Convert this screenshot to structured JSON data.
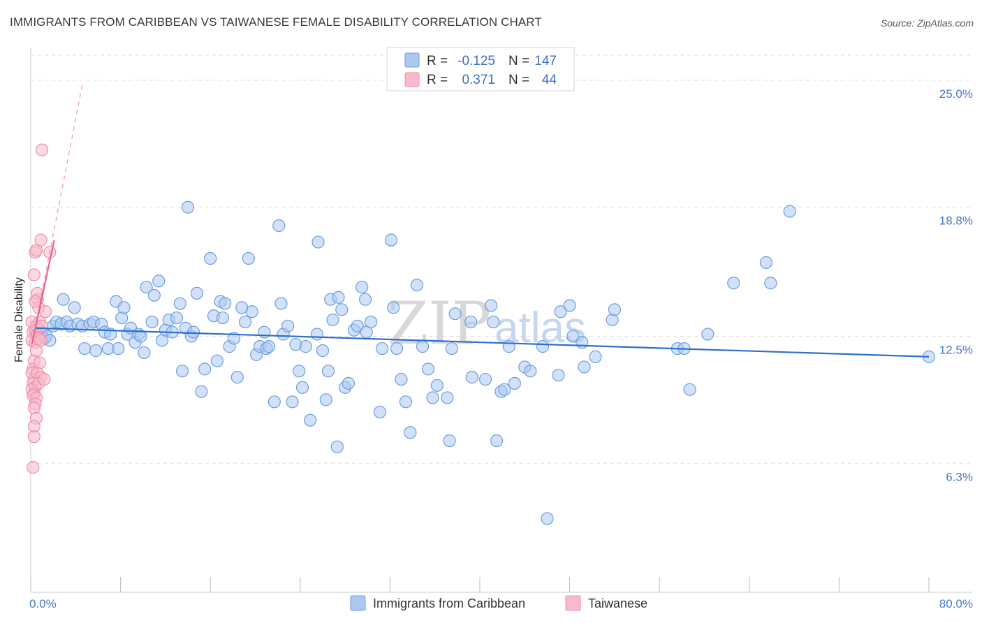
{
  "title": "IMMIGRANTS FROM CARIBBEAN VS TAIWANESE FEMALE DISABILITY CORRELATION CHART",
  "source": "Source: ZipAtlas.com",
  "watermark": {
    "zip": "ZIP",
    "atlas": "atlas"
  },
  "colors": {
    "blue_fill": "#a9c8f2",
    "blue_stroke": "#6f9de0",
    "blue_line": "#2b6fd1",
    "pink_fill": "#f7b9cb",
    "pink_stroke": "#ec8fac",
    "pink_line": "#e8638e",
    "grid": "#dddddd",
    "axis_text": "#4a78c8"
  },
  "legend": {
    "rows": [
      {
        "r_label": "R =",
        "r_value": "-0.125",
        "n_label": "N =",
        "n_value": "147"
      },
      {
        "r_label": "R =",
        "r_value": "0.371",
        "n_label": "N =",
        "n_value": "44"
      }
    ]
  },
  "bottom_legend": [
    "Immigrants from Caribbean",
    "Taiwanese"
  ],
  "chart_data": {
    "type": "scatter",
    "title": "IMMIGRANTS FROM CARIBBEAN VS TAIWANESE FEMALE DISABILITY CORRELATION CHART",
    "xlabel": "",
    "ylabel": "Female Disability",
    "xlim": [
      0,
      80
    ],
    "ylim": [
      0,
      26.6
    ],
    "x_tick_labels": [
      {
        "value": 0,
        "label": "0.0%"
      },
      {
        "value": 80,
        "label": "80.0%"
      }
    ],
    "y_tick_labels": [
      {
        "value": 6.3,
        "label": "6.3%"
      },
      {
        "value": 12.5,
        "label": "12.5%"
      },
      {
        "value": 18.8,
        "label": "18.8%"
      },
      {
        "value": 25.0,
        "label": "25.0%"
      }
    ],
    "grid": true,
    "legend_position": "top-center",
    "series": [
      {
        "name": "Immigrants from Caribbean",
        "r": -0.125,
        "n": 147,
        "trend": {
          "x": [
            0.5,
            80
          ],
          "y": [
            12.9,
            11.5
          ]
        },
        "points": [
          [
            0.5,
            12.6
          ],
          [
            0.8,
            12.8
          ],
          [
            1.0,
            12.7
          ],
          [
            1.2,
            12.4
          ],
          [
            1.4,
            12.5
          ],
          [
            1.7,
            12.3
          ],
          [
            2.0,
            13.0
          ],
          [
            2.3,
            13.2
          ],
          [
            2.7,
            13.1
          ],
          [
            2.9,
            14.3
          ],
          [
            3.2,
            13.2
          ],
          [
            3.5,
            13.0
          ],
          [
            3.9,
            13.9
          ],
          [
            4.2,
            13.1
          ],
          [
            4.6,
            13.0
          ],
          [
            4.8,
            11.9
          ],
          [
            5.3,
            13.1
          ],
          [
            5.6,
            13.2
          ],
          [
            5.8,
            11.8
          ],
          [
            6.3,
            13.1
          ],
          [
            6.6,
            12.7
          ],
          [
            6.9,
            11.9
          ],
          [
            7.1,
            12.6
          ],
          [
            7.6,
            14.2
          ],
          [
            7.8,
            11.9
          ],
          [
            8.1,
            13.4
          ],
          [
            8.3,
            13.9
          ],
          [
            8.6,
            12.6
          ],
          [
            8.9,
            12.9
          ],
          [
            9.3,
            12.2
          ],
          [
            9.6,
            12.6
          ],
          [
            9.8,
            12.5
          ],
          [
            10.1,
            11.7
          ],
          [
            10.3,
            14.9
          ],
          [
            10.8,
            13.2
          ],
          [
            11.0,
            14.5
          ],
          [
            11.4,
            15.2
          ],
          [
            11.7,
            12.3
          ],
          [
            12.0,
            12.8
          ],
          [
            12.3,
            13.3
          ],
          [
            12.6,
            12.7
          ],
          [
            13.0,
            13.4
          ],
          [
            13.3,
            14.1
          ],
          [
            13.5,
            10.8
          ],
          [
            13.8,
            12.9
          ],
          [
            14.0,
            18.8
          ],
          [
            14.3,
            12.5
          ],
          [
            14.5,
            12.7
          ],
          [
            14.8,
            14.6
          ],
          [
            15.2,
            9.8
          ],
          [
            15.5,
            10.9
          ],
          [
            16.0,
            16.3
          ],
          [
            16.3,
            13.5
          ],
          [
            16.6,
            11.3
          ],
          [
            16.9,
            14.2
          ],
          [
            17.1,
            13.4
          ],
          [
            17.3,
            14.1
          ],
          [
            17.7,
            12.0
          ],
          [
            18.1,
            12.4
          ],
          [
            18.4,
            10.5
          ],
          [
            18.8,
            13.9
          ],
          [
            19.1,
            13.2
          ],
          [
            19.4,
            16.3
          ],
          [
            19.7,
            13.7
          ],
          [
            20.1,
            11.6
          ],
          [
            20.4,
            12.0
          ],
          [
            20.8,
            12.7
          ],
          [
            21.0,
            11.9
          ],
          [
            21.2,
            12.0
          ],
          [
            21.7,
            9.3
          ],
          [
            22.1,
            17.9
          ],
          [
            22.3,
            14.1
          ],
          [
            22.5,
            12.6
          ],
          [
            22.9,
            13.0
          ],
          [
            23.3,
            9.3
          ],
          [
            23.6,
            12.1
          ],
          [
            23.9,
            10.8
          ],
          [
            24.2,
            10.0
          ],
          [
            24.5,
            12.0
          ],
          [
            24.9,
            8.4
          ],
          [
            25.6,
            17.1
          ],
          [
            25.5,
            12.6
          ],
          [
            26.0,
            11.8
          ],
          [
            26.3,
            9.4
          ],
          [
            26.5,
            10.8
          ],
          [
            26.7,
            14.3
          ],
          [
            26.9,
            13.3
          ],
          [
            27.3,
            7.1
          ],
          [
            27.4,
            14.4
          ],
          [
            27.7,
            13.8
          ],
          [
            28.0,
            10.0
          ],
          [
            28.3,
            10.2
          ],
          [
            28.8,
            12.8
          ],
          [
            29.1,
            13.0
          ],
          [
            29.5,
            14.9
          ],
          [
            29.8,
            14.3
          ],
          [
            29.9,
            12.7
          ],
          [
            30.3,
            13.2
          ],
          [
            31.1,
            8.8
          ],
          [
            31.3,
            11.9
          ],
          [
            32.1,
            17.2
          ],
          [
            32.3,
            13.9
          ],
          [
            32.6,
            11.9
          ],
          [
            33.0,
            10.4
          ],
          [
            33.4,
            9.3
          ],
          [
            33.8,
            7.8
          ],
          [
            34.4,
            15.0
          ],
          [
            34.9,
            12.0
          ],
          [
            35.4,
            10.9
          ],
          [
            35.8,
            9.5
          ],
          [
            36.2,
            10.1
          ],
          [
            37.1,
            9.5
          ],
          [
            37.3,
            7.4
          ],
          [
            37.8,
            13.6
          ],
          [
            37.5,
            11.9
          ],
          [
            39.2,
            13.2
          ],
          [
            39.3,
            10.5
          ],
          [
            40.5,
            10.4
          ],
          [
            41.0,
            14.0
          ],
          [
            41.2,
            13.2
          ],
          [
            41.5,
            7.4
          ],
          [
            41.9,
            9.8
          ],
          [
            42.2,
            9.9
          ],
          [
            42.6,
            12.0
          ],
          [
            43.1,
            10.2
          ],
          [
            44.0,
            11.0
          ],
          [
            44.5,
            10.8
          ],
          [
            45.6,
            12.0
          ],
          [
            46.0,
            3.6
          ],
          [
            47.0,
            10.6
          ],
          [
            47.2,
            13.7
          ],
          [
            48.0,
            14.0
          ],
          [
            48.3,
            12.5
          ],
          [
            49.1,
            12.2
          ],
          [
            49.3,
            11.0
          ],
          [
            50.3,
            11.5
          ],
          [
            51.8,
            13.3
          ],
          [
            52.0,
            13.8
          ],
          [
            57.6,
            11.9
          ],
          [
            58.2,
            11.9
          ],
          [
            58.7,
            9.9
          ],
          [
            60.3,
            12.6
          ],
          [
            62.6,
            15.1
          ],
          [
            65.5,
            16.1
          ],
          [
            65.9,
            15.1
          ],
          [
            67.6,
            18.6
          ],
          [
            80,
            11.5
          ]
        ]
      },
      {
        "name": "Taiwanese",
        "r": 0.371,
        "n": 44,
        "trend": {
          "x": [
            0.1,
            2.1
          ],
          "y": [
            12.1,
            17.2
          ]
        },
        "trend_extended": {
          "x": [
            0.1,
            4.6
          ],
          "y": [
            12.1,
            24.8
          ]
        },
        "points": [
          [
            0.1,
            13.2
          ],
          [
            0.2,
            12.7
          ],
          [
            0.1,
            12.3
          ],
          [
            0.3,
            11.3
          ],
          [
            0.2,
            10.9
          ],
          [
            0.1,
            10.7
          ],
          [
            0.3,
            10.4
          ],
          [
            0.2,
            10.2
          ],
          [
            0.4,
            10.0
          ],
          [
            0.1,
            9.9
          ],
          [
            0.3,
            9.7
          ],
          [
            0.2,
            9.6
          ],
          [
            0.5,
            9.5
          ],
          [
            0.4,
            9.2
          ],
          [
            0.3,
            9.0
          ],
          [
            0.5,
            8.5
          ],
          [
            0.3,
            8.1
          ],
          [
            0.3,
            7.6
          ],
          [
            0.2,
            6.1
          ],
          [
            0.4,
            12.8
          ],
          [
            0.5,
            13.0
          ],
          [
            0.6,
            12.6
          ],
          [
            0.4,
            12.2
          ],
          [
            0.7,
            12.4
          ],
          [
            0.5,
            11.8
          ],
          [
            0.8,
            11.2
          ],
          [
            0.6,
            10.7
          ],
          [
            0.9,
            10.5
          ],
          [
            0.7,
            10.2
          ],
          [
            1.2,
            10.4
          ],
          [
            0.3,
            15.5
          ],
          [
            0.4,
            16.6
          ],
          [
            0.5,
            16.7
          ],
          [
            0.6,
            14.3
          ],
          [
            0.7,
            13.9
          ],
          [
            0.8,
            13.2
          ],
          [
            0.9,
            12.3
          ],
          [
            1.0,
            13.0
          ],
          [
            1.3,
            13.7
          ],
          [
            0.9,
            17.2
          ],
          [
            1.7,
            16.6
          ],
          [
            1.0,
            21.6
          ],
          [
            0.6,
            14.6
          ],
          [
            0.4,
            14.2
          ]
        ]
      }
    ]
  }
}
